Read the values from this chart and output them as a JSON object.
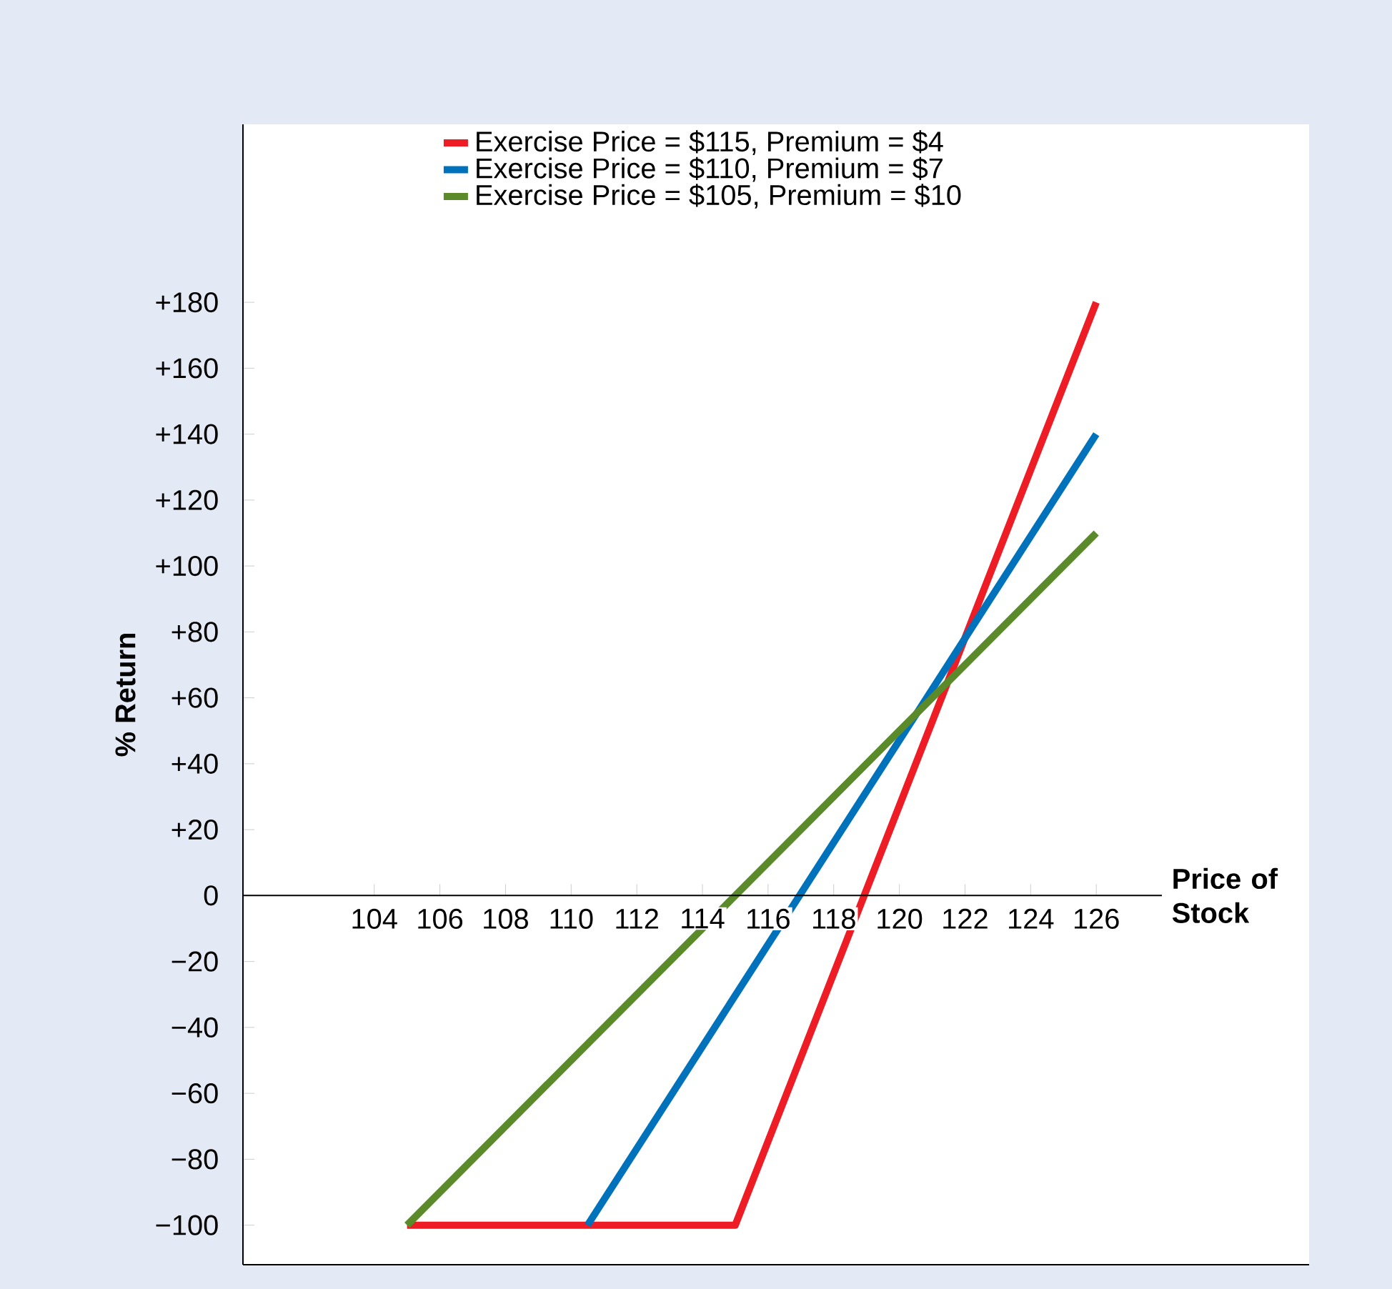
{
  "chart_data": {
    "type": "line",
    "xlabel": "Price of Stock",
    "ylabel": "% Return",
    "xlim": [
      100,
      128
    ],
    "ylim": [
      -112,
      234
    ],
    "xticks": [
      104,
      106,
      108,
      110,
      112,
      114,
      116,
      118,
      120,
      122,
      124,
      126
    ],
    "yticks": [
      {
        "value": -100,
        "label": "−100"
      },
      {
        "value": -80,
        "label": "−80"
      },
      {
        "value": -60,
        "label": "−60"
      },
      {
        "value": -40,
        "label": "−40"
      },
      {
        "value": -20,
        "label": "−20"
      },
      {
        "value": 0,
        "label": "0"
      },
      {
        "value": 20,
        "label": "+20"
      },
      {
        "value": 40,
        "label": "+40"
      },
      {
        "value": 60,
        "label": "+60"
      },
      {
        "value": 80,
        "label": "+80"
      },
      {
        "value": 100,
        "label": "+100"
      },
      {
        "value": 120,
        "label": "+120"
      },
      {
        "value": 140,
        "label": "+140"
      },
      {
        "value": 160,
        "label": "+160"
      },
      {
        "value": 180,
        "label": "+180"
      }
    ],
    "legend": "top",
    "grid": false,
    "line_style": "solid",
    "series": [
      {
        "name": "Exercise Price  = $115, Premium = $4",
        "color": "#ee1c25",
        "x": [
          105,
          115,
          126
        ],
        "values": [
          -100,
          -100,
          180
        ]
      },
      {
        "name": "Exercise Price  = $110, Premium = $7",
        "color": "#0072bc",
        "x": [
          110.5,
          126
        ],
        "values": [
          -100,
          140
        ]
      },
      {
        "name": "Exercise Price  = $105, Premium = $10",
        "color": "#5a8a2a",
        "x": [
          105,
          126
        ],
        "values": [
          -100,
          110
        ]
      }
    ]
  }
}
